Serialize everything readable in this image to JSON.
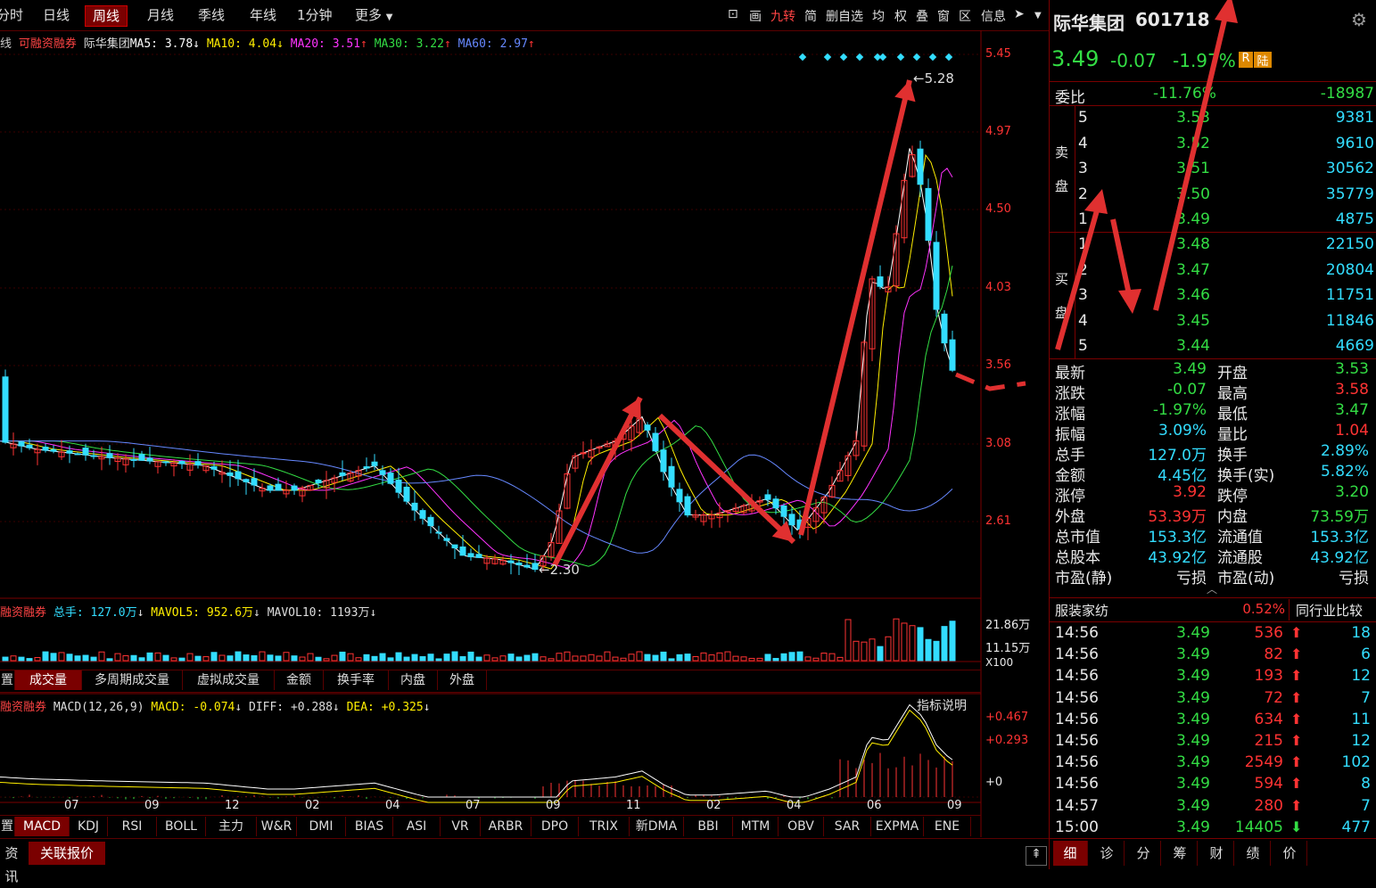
{
  "period_tabs": [
    {
      "label": "分时",
      "active": false
    },
    {
      "label": "日线",
      "active": false
    },
    {
      "label": "周线",
      "active": true
    },
    {
      "label": "月线",
      "active": false
    },
    {
      "label": "季线",
      "active": false
    },
    {
      "label": "年线",
      "active": false
    },
    {
      "label": "1分钟",
      "active": false
    },
    {
      "label": "更多",
      "active": false
    }
  ],
  "toolbar_right": [
    "画",
    "九转",
    "简",
    "删自选",
    "均",
    "权",
    "叠",
    "窗",
    "区",
    "信息"
  ],
  "main_legend": {
    "prefix": "线",
    "margin_tag": "可融资融券",
    "name": "际华集团",
    "ma5": "MA5: 3.78",
    "ma10": "MA10: 4.04",
    "ma20": "MA20: 3.51",
    "ma30": "MA30: 3.22",
    "ma60": "MA60: 2.97"
  },
  "price_axis": [
    "5.45",
    "4.97",
    "4.50",
    "4.03",
    "3.56",
    "3.08",
    "2.61"
  ],
  "price_annotations": {
    "high": "5.28",
    "low": "2.30"
  },
  "volume_legend": {
    "tag": "融资融券",
    "total": "总手: 127.0万",
    "mavol5": "MAVOL5: 952.6万",
    "mavol10": "MAVOL10: 1193万"
  },
  "volume_axis": [
    "21.86万",
    "11.15万",
    "X100"
  ],
  "volume_tabs": [
    "置",
    "成交量",
    "多周期成交量",
    "虚拟成交量",
    "金额",
    "换手率",
    "内盘",
    "外盘"
  ],
  "macd_legend": {
    "tag": "融资融券",
    "title": "MACD(12,26,9)",
    "macd": "MACD: -0.074",
    "diff": "DIFF: +0.288",
    "dea": "DEA: +0.325",
    "help": "指标说明"
  },
  "macd_axis": [
    "+0.467",
    "+0.293",
    "+0"
  ],
  "time_axis": [
    "07",
    "09",
    "12",
    "02",
    "04",
    "07",
    "09",
    "11",
    "02",
    "04",
    "06",
    "09"
  ],
  "indicator_tabs": [
    "置",
    "MACD",
    "KDJ",
    "RSI",
    "BOLL",
    "主力",
    "W&R",
    "DMI",
    "BIAS",
    "ASI",
    "VR",
    "ARBR",
    "DPO",
    "TRIX",
    "新DMA",
    "BBI",
    "MTM",
    "OBV",
    "SAR",
    "EXPMA",
    "ENE"
  ],
  "bottom_tabs": [
    "资讯",
    "关联报价"
  ],
  "stock": {
    "name": "际华集团",
    "code": "601718",
    "price": "3.49",
    "change": "-0.07",
    "change_pct": "-1.97%",
    "badge_r": "R",
    "badge_lu": "陆",
    "weibi_label": "委比",
    "weibi_pct": "-11.76%",
    "weibi_val": "-18987"
  },
  "sell_label": [
    "卖",
    "盘"
  ],
  "buy_label": [
    "买",
    "盘"
  ],
  "sell_orders": [
    {
      "lvl": "5",
      "price": "3.53",
      "vol": "9381"
    },
    {
      "lvl": "4",
      "price": "3.52",
      "vol": "9610"
    },
    {
      "lvl": "3",
      "price": "3.51",
      "vol": "30562"
    },
    {
      "lvl": "2",
      "price": "3.50",
      "vol": "35779"
    },
    {
      "lvl": "1",
      "price": "3.49",
      "vol": "4875"
    }
  ],
  "buy_orders": [
    {
      "lvl": "1",
      "price": "3.48",
      "vol": "22150"
    },
    {
      "lvl": "2",
      "price": "3.47",
      "vol": "20804"
    },
    {
      "lvl": "3",
      "price": "3.46",
      "vol": "11751"
    },
    {
      "lvl": "4",
      "price": "3.45",
      "vol": "11846"
    },
    {
      "lvl": "5",
      "price": "3.44",
      "vol": "4669"
    }
  ],
  "quote_stats": [
    {
      "l1": "最新",
      "v1": "3.49",
      "c1": "green",
      "l2": "开盘",
      "v2": "3.53",
      "c2": "green"
    },
    {
      "l1": "涨跌",
      "v1": "-0.07",
      "c1": "green",
      "l2": "最高",
      "v2": "3.58",
      "c2": "red"
    },
    {
      "l1": "涨幅",
      "v1": "-1.97%",
      "c1": "green",
      "l2": "最低",
      "v2": "3.47",
      "c2": "green"
    },
    {
      "l1": "振幅",
      "v1": "3.09%",
      "c1": "cyan",
      "l2": "量比",
      "v2": "1.04",
      "c2": "red"
    },
    {
      "l1": "总手",
      "v1": "127.0万",
      "c1": "cyan",
      "l2": "换手",
      "v2": "2.89%",
      "c2": "cyan"
    },
    {
      "l1": "金额",
      "v1": "4.45亿",
      "c1": "cyan",
      "l2": "换手(实)",
      "v2": "5.82%",
      "c2": "cyan"
    },
    {
      "l1": "涨停",
      "v1": "3.92",
      "c1": "red",
      "l2": "跌停",
      "v2": "3.20",
      "c2": "green"
    },
    {
      "l1": "外盘",
      "v1": "53.39万",
      "c1": "red",
      "l2": "内盘",
      "v2": "73.59万",
      "c2": "green"
    },
    {
      "l1": "总市值",
      "v1": "153.3亿",
      "c1": "cyan",
      "l2": "流通值",
      "v2": "153.3亿",
      "c2": "cyan"
    },
    {
      "l1": "总股本",
      "v1": "43.92亿",
      "c1": "cyan",
      "l2": "流通股",
      "v2": "43.92亿",
      "c2": "cyan"
    },
    {
      "l1": "市盈(静)",
      "v1": "亏损",
      "c1": "white",
      "l2": "市盈(动)",
      "v2": "亏损",
      "c2": "white"
    }
  ],
  "industry": {
    "name": "服装家纺",
    "pct": "0.52%",
    "compare": "同行业比较"
  },
  "ticks": [
    {
      "t": "14:56",
      "p": "3.49",
      "v": "536",
      "dir": "up",
      "n": "18"
    },
    {
      "t": "14:56",
      "p": "3.49",
      "v": "82",
      "dir": "up",
      "n": "6"
    },
    {
      "t": "14:56",
      "p": "3.49",
      "v": "193",
      "dir": "up",
      "n": "12"
    },
    {
      "t": "14:56",
      "p": "3.49",
      "v": "72",
      "dir": "up",
      "n": "7"
    },
    {
      "t": "14:56",
      "p": "3.49",
      "v": "634",
      "dir": "up",
      "n": "11"
    },
    {
      "t": "14:56",
      "p": "3.49",
      "v": "215",
      "dir": "up",
      "n": "12"
    },
    {
      "t": "14:56",
      "p": "3.49",
      "v": "2549",
      "dir": "up",
      "n": "102"
    },
    {
      "t": "14:56",
      "p": "3.49",
      "v": "594",
      "dir": "up",
      "n": "8"
    },
    {
      "t": "14:57",
      "p": "3.49",
      "v": "280",
      "dir": "up",
      "n": "7"
    },
    {
      "t": "15:00",
      "p": "3.49",
      "v": "14405",
      "dir": "down",
      "n": "477"
    }
  ],
  "panel_tabs": [
    "细",
    "诊",
    "分",
    "筹",
    "财",
    "绩",
    "价"
  ],
  "colors": {
    "up": "#ff3333",
    "down": "#33ddff",
    "border": "#7a0000",
    "ma5": "#ffffff",
    "ma10": "#ffee00",
    "ma20": "#ff33ff",
    "ma30": "#33dd44",
    "ma60": "#6688ff"
  }
}
